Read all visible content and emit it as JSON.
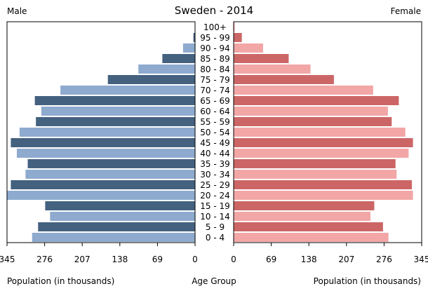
{
  "chart_data": {
    "type": "bar",
    "title": "Sweden - 2014",
    "left_label": "Male",
    "right_label": "Female",
    "categories": [
      "100+",
      "95 - 99",
      "90 - 94",
      "85 - 89",
      "80 - 84",
      "75 - 79",
      "70 - 74",
      "65 - 69",
      "60 - 64",
      "55 - 59",
      "50 - 54",
      "45 - 49",
      "40 - 44",
      "35 - 39",
      "30 - 34",
      "25 - 29",
      "20 - 24",
      "15 - 19",
      "10 - 14",
      "5 - 9",
      "0 - 4"
    ],
    "series": [
      {
        "name": "Male",
        "values": [
          0.3,
          3,
          22,
          60,
          104,
          160,
          247,
          294,
          282,
          292,
          322,
          338,
          327,
          307,
          311,
          338,
          345,
          275,
          266,
          288,
          299
        ],
        "colors": [
          "#8eaacf",
          "#44617f"
        ]
      },
      {
        "name": "Female",
        "values": [
          2,
          15,
          54,
          101,
          141,
          184,
          256,
          303,
          283,
          290,
          315,
          329,
          321,
          297,
          299,
          327,
          329,
          258,
          251,
          274,
          284
        ],
        "colors": [
          "#f2a6a6",
          "#cc6666"
        ]
      }
    ],
    "xlim": [
      0,
      345
    ],
    "ticks": [
      345,
      276,
      207,
      138,
      69,
      0
    ],
    "xlabel_left": "Population (in thousands)",
    "xlabel_center": "Age Group",
    "xlabel_right": "Population (in thousands)"
  }
}
